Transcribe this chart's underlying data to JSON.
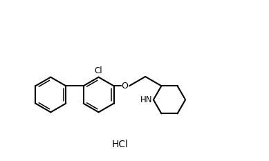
{
  "background_color": "#ffffff",
  "line_color": "#000000",
  "line_width": 1.5,
  "font_size_atom": 8.5,
  "font_size_hcl": 10,
  "hcl_label": "HCl",
  "nh_label": "HN",
  "cl_label": "Cl",
  "o_label": "O",
  "ring_r": 0.68,
  "pip_r": 0.62
}
